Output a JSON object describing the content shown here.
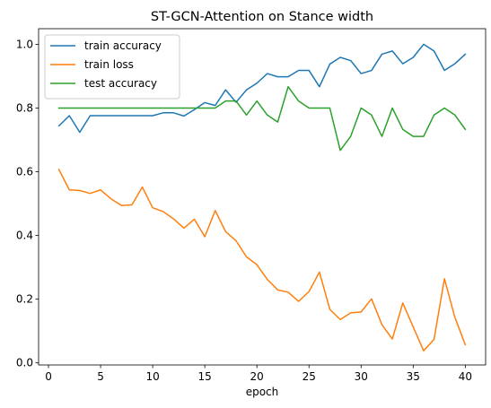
{
  "chart_data": {
    "type": "line",
    "title": "ST-GCN-Attention on Stance width",
    "xlabel": "epoch",
    "ylabel": "",
    "xlim": [
      -0.95,
      41.95
    ],
    "ylim": [
      -0.0065,
      1.049
    ],
    "xticks": [
      0,
      5,
      10,
      15,
      20,
      25,
      30,
      35,
      40
    ],
    "yticks": [
      0.0,
      0.2,
      0.4,
      0.6,
      0.8,
      1.0
    ],
    "ytick_labels": [
      "0.0",
      "0.2",
      "0.4",
      "0.6",
      "0.8",
      "1.0"
    ],
    "grid": false,
    "legend_position": "upper-left",
    "x": [
      1,
      2,
      3,
      4,
      5,
      6,
      7,
      8,
      9,
      10,
      11,
      12,
      13,
      14,
      15,
      16,
      17,
      18,
      19,
      20,
      21,
      22,
      23,
      24,
      25,
      26,
      27,
      28,
      29,
      30,
      31,
      32,
      33,
      34,
      35,
      36,
      37,
      38,
      39,
      40
    ],
    "series": [
      {
        "name": "train accuracy",
        "color": "#1f77b4",
        "values": [
          0.744,
          0.776,
          0.724,
          0.776,
          0.776,
          0.776,
          0.776,
          0.776,
          0.776,
          0.776,
          0.785,
          0.785,
          0.775,
          0.795,
          0.817,
          0.808,
          0.857,
          0.818,
          0.857,
          0.878,
          0.908,
          0.898,
          0.898,
          0.918,
          0.918,
          0.867,
          0.938,
          0.959,
          0.949,
          0.908,
          0.918,
          0.969,
          0.979,
          0.939,
          0.959,
          1.0,
          0.979,
          0.918,
          0.939,
          0.969
        ]
      },
      {
        "name": "train loss",
        "color": "#ff7f0e",
        "values": [
          0.607,
          0.543,
          0.541,
          0.532,
          0.543,
          0.515,
          0.494,
          0.496,
          0.552,
          0.487,
          0.475,
          0.452,
          0.423,
          0.451,
          0.396,
          0.478,
          0.412,
          0.383,
          0.333,
          0.308,
          0.262,
          0.229,
          0.222,
          0.193,
          0.224,
          0.285,
          0.168,
          0.136,
          0.157,
          0.16,
          0.201,
          0.12,
          0.075,
          0.188,
          0.113,
          0.038,
          0.074,
          0.264,
          0.143,
          0.057
        ]
      },
      {
        "name": "test accuracy",
        "color": "#2ca02c",
        "values": [
          0.8,
          0.8,
          0.8,
          0.8,
          0.8,
          0.8,
          0.8,
          0.8,
          0.8,
          0.8,
          0.8,
          0.8,
          0.8,
          0.8,
          0.8,
          0.8,
          0.822,
          0.822,
          0.778,
          0.822,
          0.778,
          0.756,
          0.867,
          0.822,
          0.8,
          0.8,
          0.8,
          0.667,
          0.711,
          0.8,
          0.778,
          0.711,
          0.8,
          0.733,
          0.711,
          0.711,
          0.778,
          0.8,
          0.778,
          0.733
        ]
      }
    ]
  }
}
